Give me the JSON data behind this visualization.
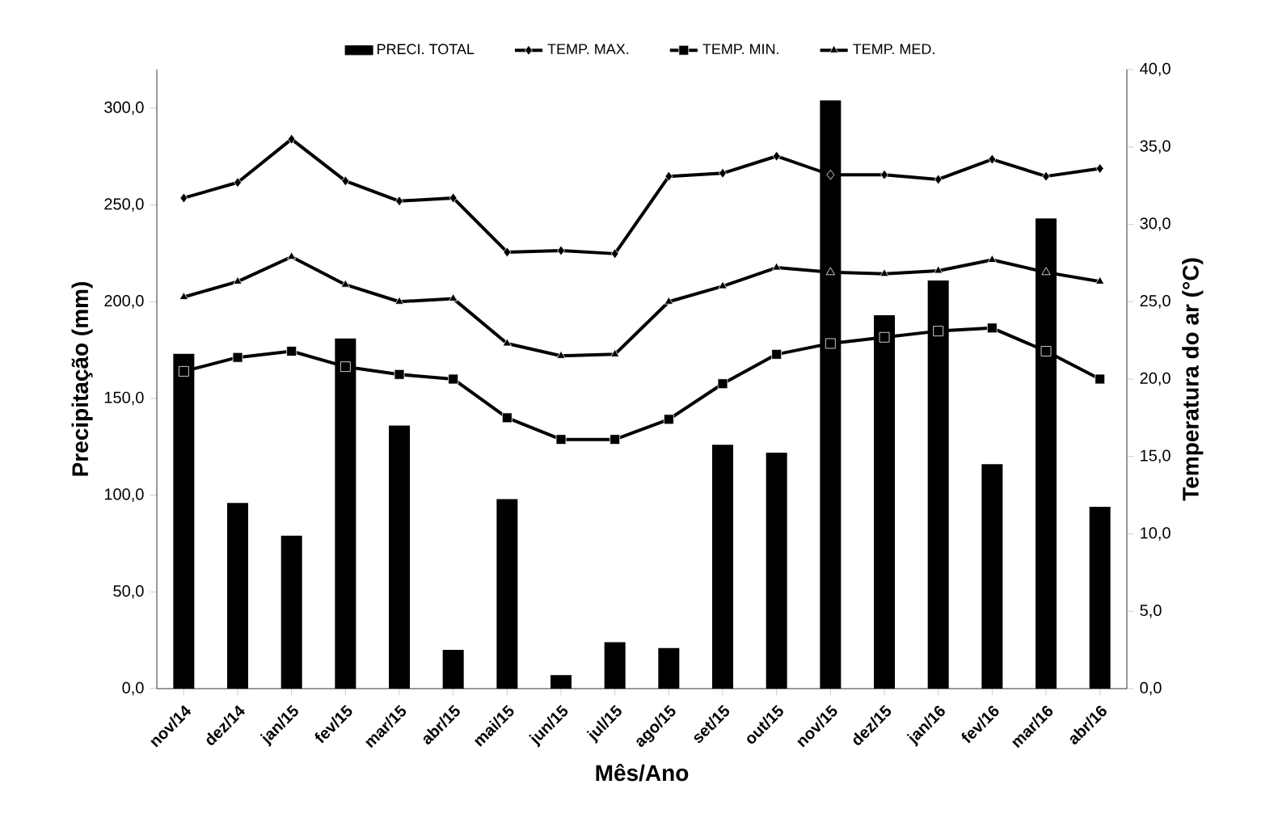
{
  "chart_data": {
    "type": "bar",
    "xlabel": "Mês/Ano",
    "ylabel": "Precipitação (mm)",
    "y2label": "Temperatura do ar (°C)",
    "categories": [
      "nov/14",
      "dez/14",
      "jan/15",
      "fev/15",
      "mar/15",
      "abr/15",
      "mai/15",
      "jun/15",
      "jul/15",
      "ago/15",
      "set/15",
      "out/15",
      "nov/15",
      "dez/15",
      "jan/16",
      "fev/16",
      "mar/16",
      "abr/16"
    ],
    "series": [
      {
        "name": "PRECI. TOTAL",
        "color": "#000000",
        "values": [
          173,
          96,
          79,
          181,
          136,
          20,
          98,
          7,
          24,
          21,
          126,
          122,
          304,
          193,
          211,
          116,
          243,
          94
        ]
      },
      {
        "name": "TEMP. MAX.",
        "type": "line",
        "axis": "y2",
        "marker": "diamond",
        "color": "#000000",
        "values": [
          31.7,
          32.7,
          35.5,
          32.8,
          31.5,
          31.7,
          28.2,
          28.3,
          28.1,
          33.1,
          33.3,
          34.4,
          33.2,
          33.2,
          32.9,
          34.2,
          33.1,
          33.6
        ]
      },
      {
        "name": "TEMP. MIN.",
        "type": "line",
        "axis": "y2",
        "marker": "square",
        "color": "#000000",
        "values": [
          20.5,
          21.4,
          21.8,
          20.8,
          20.3,
          20.0,
          17.5,
          16.1,
          16.1,
          17.4,
          19.7,
          21.6,
          22.3,
          22.7,
          23.1,
          23.3,
          21.8,
          20.0
        ]
      },
      {
        "name": "TEMP. MED.",
        "type": "line",
        "axis": "y2",
        "marker": "triangle",
        "color": "#000000",
        "values": [
          25.3,
          26.3,
          27.9,
          26.1,
          25.0,
          25.2,
          22.3,
          21.5,
          21.6,
          25.0,
          26.0,
          27.2,
          26.9,
          26.8,
          27.0,
          27.7,
          26.9,
          26.3
        ]
      }
    ],
    "ylim": [
      0,
      320
    ],
    "yticks": [
      {
        "value": 0,
        "label": "0,0"
      },
      {
        "value": 50,
        "label": "50,0"
      },
      {
        "value": 100,
        "label": "100,0"
      },
      {
        "value": 150,
        "label": "150,0"
      },
      {
        "value": 200,
        "label": "200,0"
      },
      {
        "value": 250,
        "label": "250,0"
      },
      {
        "value": 300,
        "label": "300,0"
      }
    ],
    "y2lim": [
      0,
      40
    ],
    "y2ticks": [
      {
        "value": 0,
        "label": "0,0"
      },
      {
        "value": 5,
        "label": "5,0"
      },
      {
        "value": 10,
        "label": "10,0"
      },
      {
        "value": 15,
        "label": "15,0"
      },
      {
        "value": 20,
        "label": "20,0"
      },
      {
        "value": 25,
        "label": "25,0"
      },
      {
        "value": 30,
        "label": "30,0"
      },
      {
        "value": 35,
        "label": "35,0"
      },
      {
        "value": 40,
        "label": "40,0"
      }
    ],
    "legend": "top",
    "grid": false,
    "line_style": "solid"
  }
}
